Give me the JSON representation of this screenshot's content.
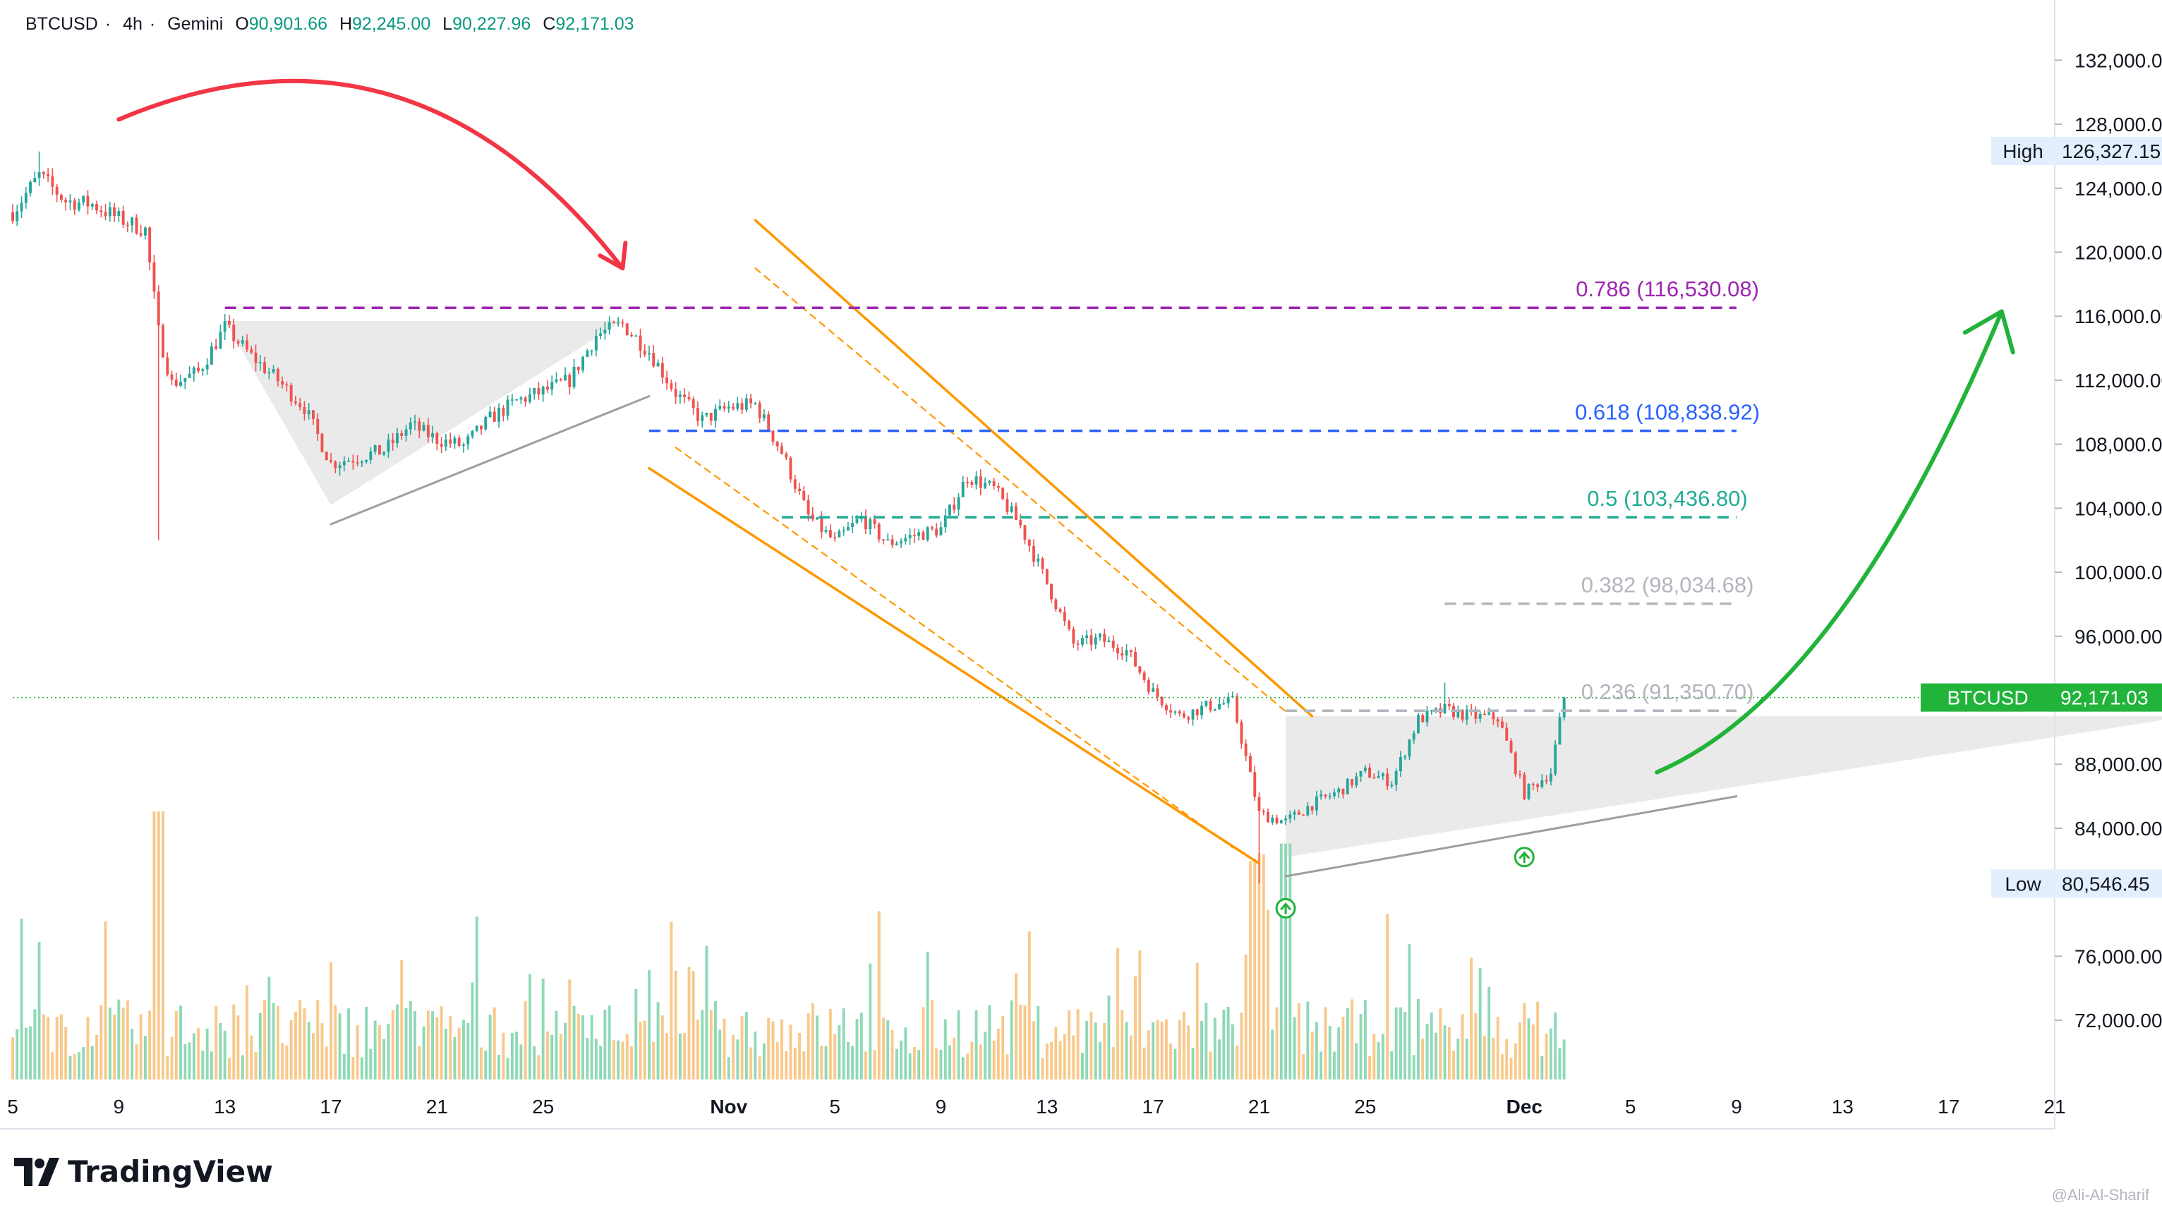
{
  "header": {
    "symbol": "BTCUSD",
    "interval": "4h",
    "exchange": "Gemini",
    "open_label": "O",
    "open": "90,901.66",
    "high_label": "H",
    "high": "92,245.00",
    "low_label": "L",
    "low": "90,227.96",
    "close_label": "C",
    "close": "92,171.03"
  },
  "brand": {
    "name": "TradingView"
  },
  "watermark": "@Ali-Al-Sharif",
  "colors": {
    "up": "#26a69a",
    "down": "#ef5350",
    "fib_786": "#9c27b0",
    "fib_618": "#2962ff",
    "fib_5": "#22ab94",
    "fib_382": "#b2b5be",
    "fib_236": "#b2b5be",
    "channel": "#ff9800",
    "arrow_down": "#f23645",
    "arrow_up": "#22b33a",
    "price_line": "#22b33a"
  },
  "chart_data": {
    "type": "candlestick",
    "title": "",
    "y_axis": {
      "side": "right",
      "ticks": [
        "132,000.00",
        "128,000.00",
        "124,000.00",
        "120,000.00",
        "116,000.00",
        "112,000.00",
        "108,000.00",
        "104,000.00",
        "100,000.00",
        "96,000.00",
        "88,000.00",
        "84,000.00",
        "76,000.00",
        "72,000.00"
      ],
      "range": [
        68300,
        134000
      ]
    },
    "x_axis": {
      "ticks": [
        {
          "label": "5",
          "date": "2025-10-05"
        },
        {
          "label": "9",
          "date": "2025-10-09"
        },
        {
          "label": "13",
          "date": "2025-10-13"
        },
        {
          "label": "17",
          "date": "2025-10-17"
        },
        {
          "label": "21",
          "date": "2025-10-21"
        },
        {
          "label": "25",
          "date": "2025-10-25"
        },
        {
          "label": "Nov",
          "date": "2025-11-01",
          "bold": true
        },
        {
          "label": "5",
          "date": "2025-11-05"
        },
        {
          "label": "9",
          "date": "2025-11-09"
        },
        {
          "label": "13",
          "date": "2025-11-13"
        },
        {
          "label": "17",
          "date": "2025-11-17"
        },
        {
          "label": "21",
          "date": "2025-11-21"
        },
        {
          "label": "25",
          "date": "2025-11-25"
        },
        {
          "label": "Dec",
          "date": "2025-12-01",
          "bold": true
        },
        {
          "label": "5",
          "date": "2025-12-05"
        },
        {
          "label": "9",
          "date": "2025-12-09"
        },
        {
          "label": "13",
          "date": "2025-12-13"
        },
        {
          "label": "17",
          "date": "2025-12-17"
        },
        {
          "label": "21",
          "date": "2025-12-21"
        }
      ],
      "range": [
        "2025-10-05",
        "2025-12-21"
      ]
    },
    "price_path": [
      [
        "2025-10-05",
        122500
      ],
      [
        "2025-10-06",
        124800
      ],
      [
        "2025-10-07",
        123200
      ],
      [
        "2025-10-08",
        123000
      ],
      [
        "2025-10-09",
        122100
      ],
      [
        "2025-10-10",
        121400
      ],
      [
        "2025-10-10T12",
        115000
      ],
      [
        "2025-10-11",
        111800
      ],
      [
        "2025-10-12",
        112500
      ],
      [
        "2025-10-13",
        115300
      ],
      [
        "2025-10-14",
        113500
      ],
      [
        "2025-10-15",
        112000
      ],
      [
        "2025-10-16",
        110300
      ],
      [
        "2025-10-17",
        106800
      ],
      [
        "2025-10-18",
        107200
      ],
      [
        "2025-10-19",
        107600
      ],
      [
        "2025-10-20",
        109200
      ],
      [
        "2025-10-21",
        108300
      ],
      [
        "2025-10-22",
        107900
      ],
      [
        "2025-10-23",
        109600
      ],
      [
        "2025-10-24",
        110700
      ],
      [
        "2025-10-25",
        111300
      ],
      [
        "2025-10-26",
        112000
      ],
      [
        "2025-10-27",
        114800
      ],
      [
        "2025-10-28",
        115500
      ],
      [
        "2025-10-29",
        113800
      ],
      [
        "2025-10-30",
        111200
      ],
      [
        "2025-10-31",
        109500
      ],
      [
        "2025-11-01",
        110300
      ],
      [
        "2025-11-02",
        110500
      ],
      [
        "2025-11-03",
        107500
      ],
      [
        "2025-11-04",
        103500
      ],
      [
        "2025-11-05",
        101900
      ],
      [
        "2025-11-06",
        103400
      ],
      [
        "2025-11-07",
        101800
      ],
      [
        "2025-11-08",
        102300
      ],
      [
        "2025-11-09",
        102700
      ],
      [
        "2025-11-10",
        106000
      ],
      [
        "2025-11-11",
        105200
      ],
      [
        "2025-11-12",
        102900
      ],
      [
        "2025-11-13",
        99300
      ],
      [
        "2025-11-14",
        95500
      ],
      [
        "2025-11-15",
        95800
      ],
      [
        "2025-11-16",
        95100
      ],
      [
        "2025-11-17",
        92500
      ],
      [
        "2025-11-18",
        91000
      ],
      [
        "2025-11-19",
        91600
      ],
      [
        "2025-11-20",
        91900
      ],
      [
        "2025-11-21",
        84900
      ],
      [
        "2025-11-22",
        84400
      ],
      [
        "2025-11-23",
        85500
      ],
      [
        "2025-11-24",
        86300
      ],
      [
        "2025-11-25",
        87500
      ],
      [
        "2025-11-26",
        86900
      ],
      [
        "2025-11-27",
        90800
      ],
      [
        "2025-11-28",
        91400
      ],
      [
        "2025-11-29",
        91000
      ],
      [
        "2025-11-30",
        90900
      ],
      [
        "2025-12-01",
        86200
      ],
      [
        "2025-12-02",
        87500
      ],
      [
        "2025-12-02T12",
        92171
      ]
    ],
    "price_extremes": [
      {
        "date": "2025-10-06",
        "high": 126300
      },
      {
        "date": "2025-10-10T12",
        "low": 102000
      },
      {
        "date": "2025-11-21",
        "low": 80546
      },
      {
        "date": "2025-11-28",
        "high": 93100
      }
    ],
    "fib_levels": [
      {
        "ratio": "0.786",
        "value": 116530.08,
        "label": "0.786 (116,530.08)",
        "color": "#9c27b0",
        "from": "2025-10-13",
        "to": "2025-12-09"
      },
      {
        "ratio": "0.618",
        "value": 108838.92,
        "label": "0.618 (108,838.92)",
        "color": "#2962ff",
        "from": "2025-10-29",
        "to": "2025-12-09"
      },
      {
        "ratio": "0.5",
        "value": 103436.8,
        "label": "0.5 (103,436.80)",
        "color": "#22ab94",
        "from": "2025-11-03",
        "to": "2025-12-09"
      },
      {
        "ratio": "0.382",
        "value": 98034.68,
        "label": "0.382 (98,034.68)",
        "color": "#b2b5be",
        "from": "2025-11-28",
        "to": "2025-12-09"
      },
      {
        "ratio": "0.236",
        "value": 91350.7,
        "label": "0.236 (91,350.70)",
        "color": "#b2b5be",
        "from": "2025-11-22",
        "to": "2025-12-09"
      }
    ],
    "price_markers": [
      {
        "label": "High",
        "value": "126,327.15",
        "y": 126327.15,
        "style": "neutral"
      },
      {
        "label": "Low",
        "value": "80,546.45",
        "y": 80546.45,
        "style": "neutral"
      },
      {
        "label": "BTCUSD",
        "value": "92,171.03",
        "y": 92171.03,
        "style": "green"
      }
    ],
    "volume_axis_max": 100
  }
}
